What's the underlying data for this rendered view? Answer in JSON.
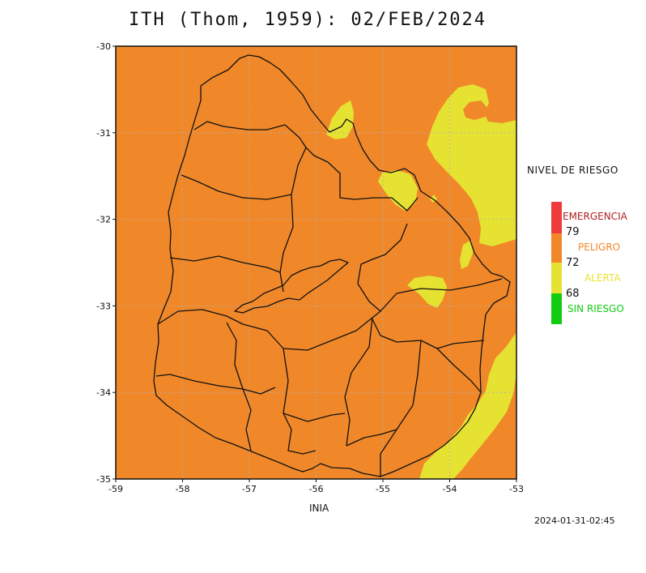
{
  "title": "ITH (Thom, 1959): 02/FEB/2024",
  "source": "INIA",
  "timestamp": "2024-01-31-02:45",
  "axes": {
    "x_ticks": [
      "-59",
      "-58",
      "-57",
      "-56",
      "-55",
      "-54",
      "-53"
    ],
    "y_ticks": [
      "-30",
      "-31",
      "-32",
      "-33",
      "-34",
      "-35"
    ],
    "lon_range": [
      -59,
      -53
    ],
    "lat_range": [
      -35,
      -30
    ]
  },
  "legend": {
    "title": "NIVEL DE RIESGO",
    "categories": [
      {
        "label": "EMERGENCIA",
        "color": "#ee3b3b"
      },
      {
        "label": "PELIGRO",
        "color": "#f0882a"
      },
      {
        "label": "ALERTA",
        "color": "#e6e232"
      },
      {
        "label": "SIN RIESGO",
        "color": "#11cc11"
      }
    ],
    "thresholds": [
      "79",
      "72",
      "68"
    ]
  },
  "map": {
    "background_color": "#f0882a",
    "alert_color": "#e6e232",
    "boundary_color": "#111111",
    "grid_color": "#b0b0b0",
    "dominant_level": "PELIGRO"
  }
}
